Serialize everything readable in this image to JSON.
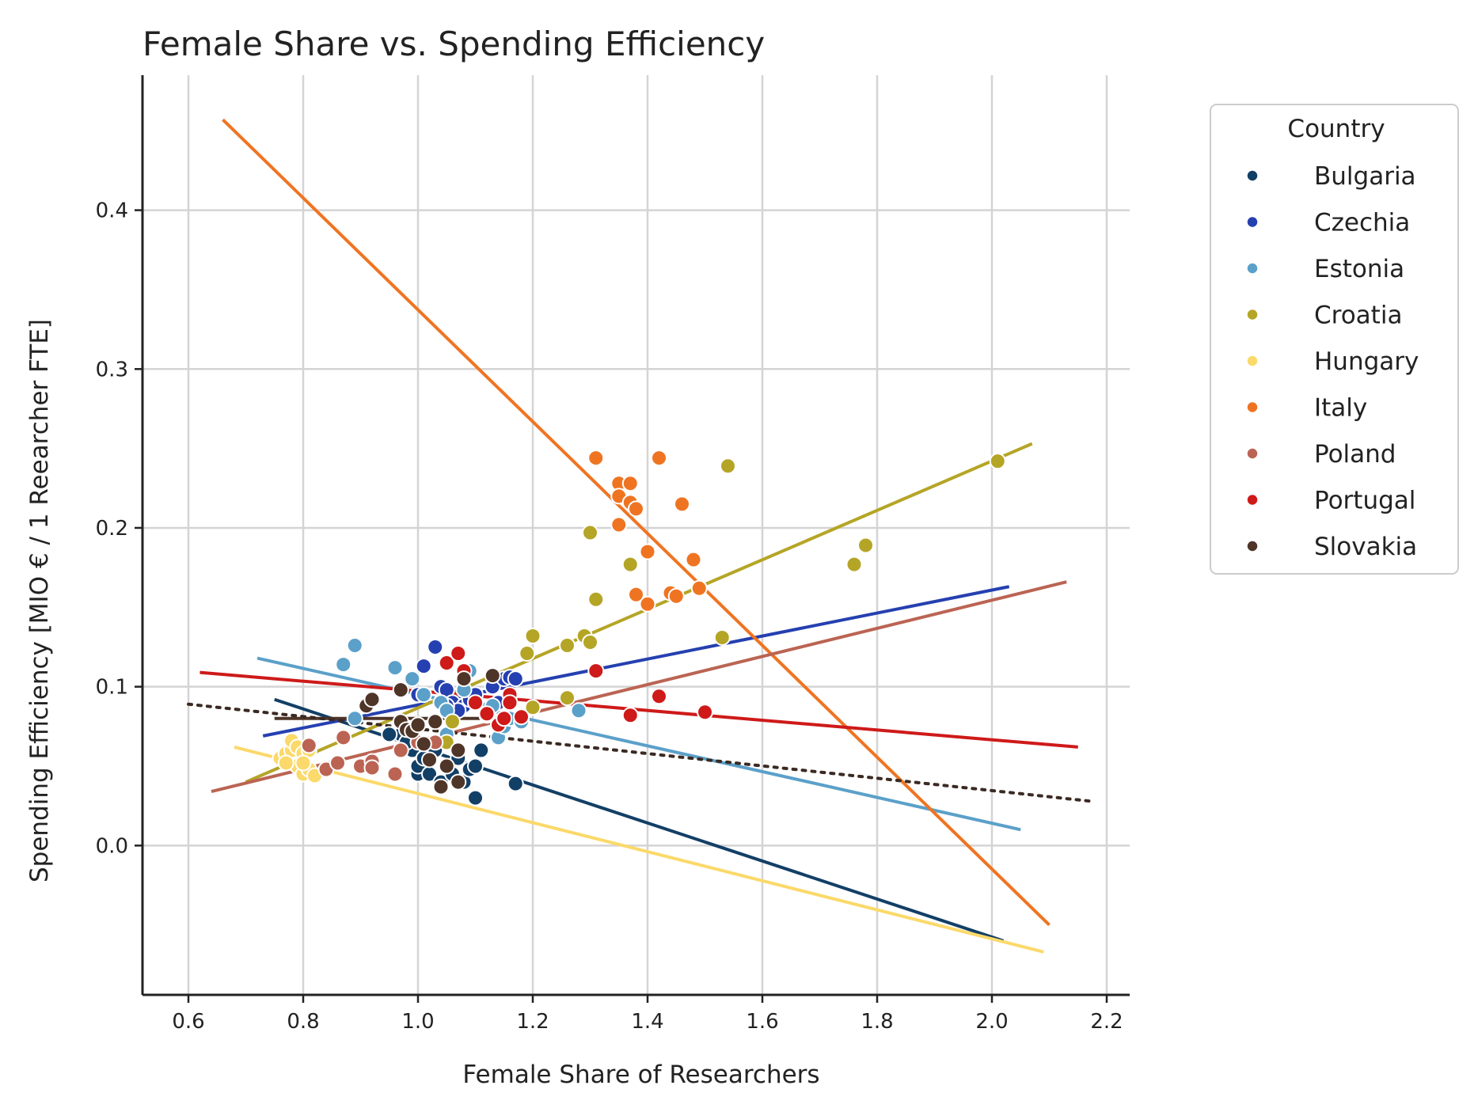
{
  "chart_data": {
    "type": "scatter",
    "title": "Female Share vs. Spending Efficiency",
    "xlabel": "Female Share of Researchers",
    "ylabel": "Spending Efficiency [MIO € / 1 Reearcher FTE]",
    "xlim": [
      0.52,
      2.24
    ],
    "ylim": [
      -0.094,
      0.485
    ],
    "x_ticks": [
      "0.6",
      "0.8",
      "1.0",
      "1.2",
      "1.4",
      "1.6",
      "1.8",
      "2.0",
      "2.2"
    ],
    "x_tick_values": [
      0.6,
      0.8,
      1.0,
      1.2,
      1.4,
      1.6,
      1.8,
      2.0,
      2.2
    ],
    "y_ticks": [
      "0.0",
      "0.1",
      "0.2",
      "0.3",
      "0.4"
    ],
    "y_tick_values": [
      0.0,
      0.1,
      0.2,
      0.3,
      0.4
    ],
    "grid": true,
    "legend": {
      "title": "Country",
      "placement": "outside-right"
    },
    "series": [
      {
        "name": "Bulgaria",
        "color": "#123f66",
        "points": [
          [
            0.97,
            0.07
          ],
          [
            0.99,
            0.06
          ],
          [
            1.0,
            0.045
          ],
          [
            1.0,
            0.05
          ],
          [
            1.01,
            0.055
          ],
          [
            1.02,
            0.045
          ],
          [
            1.03,
            0.06
          ],
          [
            1.04,
            0.04
          ],
          [
            1.05,
            0.05
          ],
          [
            1.06,
            0.045
          ],
          [
            1.07,
            0.055
          ],
          [
            1.08,
            0.04
          ],
          [
            1.09,
            0.048
          ],
          [
            1.1,
            0.05
          ],
          [
            1.1,
            0.03
          ],
          [
            1.11,
            0.06
          ],
          [
            1.17,
            0.039
          ],
          [
            0.95,
            0.07
          ],
          [
            0.98,
            0.065
          ]
        ],
        "trend": [
          [
            0.75,
            0.092
          ],
          [
            2.02,
            -0.06
          ]
        ]
      },
      {
        "name": "Czechia",
        "color": "#2540b0",
        "points": [
          [
            1.01,
            0.113
          ],
          [
            1.03,
            0.125
          ],
          [
            1.04,
            0.1
          ],
          [
            1.05,
            0.098
          ],
          [
            1.06,
            0.09
          ],
          [
            1.08,
            0.088
          ],
          [
            1.09,
            0.092
          ],
          [
            1.1,
            0.095
          ],
          [
            1.13,
            0.1
          ],
          [
            1.15,
            0.105
          ],
          [
            1.16,
            0.106
          ],
          [
            1.17,
            0.105
          ],
          [
            1.18,
            0.08
          ],
          [
            1.07,
            0.085
          ],
          [
            1.12,
            0.085
          ],
          [
            1.14,
            0.09
          ],
          [
            1.0,
            0.095
          ],
          [
            1.05,
            0.088
          ]
        ],
        "trend": [
          [
            0.73,
            0.069
          ],
          [
            2.03,
            0.163
          ]
        ]
      },
      {
        "name": "Estonia",
        "color": "#5ba0c9",
        "points": [
          [
            0.87,
            0.114
          ],
          [
            0.89,
            0.126
          ],
          [
            0.89,
            0.08
          ],
          [
            0.96,
            0.112
          ],
          [
            0.99,
            0.105
          ],
          [
            1.01,
            0.095
          ],
          [
            1.04,
            0.09
          ],
          [
            1.05,
            0.085
          ],
          [
            1.08,
            0.098
          ],
          [
            1.09,
            0.11
          ],
          [
            1.1,
            0.09
          ],
          [
            1.12,
            0.086
          ],
          [
            1.13,
            0.088
          ],
          [
            1.14,
            0.068
          ],
          [
            1.15,
            0.075
          ],
          [
            1.16,
            0.08
          ],
          [
            1.18,
            0.078
          ],
          [
            1.28,
            0.085
          ],
          [
            1.05,
            0.07
          ]
        ],
        "trend": [
          [
            0.72,
            0.118
          ],
          [
            2.05,
            0.01
          ]
        ]
      },
      {
        "name": "Croatia",
        "color": "#b5a526",
        "points": [
          [
            1.19,
            0.121
          ],
          [
            1.2,
            0.132
          ],
          [
            1.26,
            0.126
          ],
          [
            1.29,
            0.132
          ],
          [
            1.3,
            0.128
          ],
          [
            1.31,
            0.155
          ],
          [
            1.3,
            0.197
          ],
          [
            1.37,
            0.177
          ],
          [
            1.54,
            0.239
          ],
          [
            1.53,
            0.131
          ],
          [
            1.76,
            0.177
          ],
          [
            1.78,
            0.189
          ],
          [
            2.01,
            0.242
          ],
          [
            1.2,
            0.087
          ],
          [
            1.26,
            0.093
          ],
          [
            1.06,
            0.078
          ],
          [
            1.12,
            0.082
          ],
          [
            1.05,
            0.065
          ]
        ],
        "trend": [
          [
            0.7,
            0.04
          ],
          [
            2.07,
            0.253
          ]
        ]
      },
      {
        "name": "Hungary",
        "color": "#fbd96a",
        "points": [
          [
            0.76,
            0.055
          ],
          [
            0.77,
            0.058
          ],
          [
            0.78,
            0.06
          ],
          [
            0.78,
            0.066
          ],
          [
            0.79,
            0.062
          ],
          [
            0.79,
            0.05
          ],
          [
            0.8,
            0.045
          ],
          [
            0.8,
            0.058
          ],
          [
            0.81,
            0.06
          ],
          [
            0.81,
            0.048
          ],
          [
            0.82,
            0.044
          ],
          [
            0.77,
            0.052
          ],
          [
            0.8,
            0.052
          ]
        ],
        "trend": [
          [
            0.68,
            0.062
          ],
          [
            2.09,
            -0.067
          ]
        ]
      },
      {
        "name": "Italy",
        "color": "#ef7422",
        "points": [
          [
            1.31,
            0.244
          ],
          [
            1.35,
            0.228
          ],
          [
            1.35,
            0.22
          ],
          [
            1.37,
            0.228
          ],
          [
            1.37,
            0.216
          ],
          [
            1.38,
            0.212
          ],
          [
            1.35,
            0.202
          ],
          [
            1.4,
            0.185
          ],
          [
            1.38,
            0.158
          ],
          [
            1.4,
            0.152
          ],
          [
            1.42,
            0.244
          ],
          [
            1.44,
            0.159
          ],
          [
            1.45,
            0.157
          ],
          [
            1.46,
            0.215
          ],
          [
            1.48,
            0.18
          ],
          [
            1.49,
            0.162
          ]
        ],
        "trend": [
          [
            0.66,
            0.457
          ],
          [
            2.1,
            -0.05
          ]
        ]
      },
      {
        "name": "Poland",
        "color": "#bb6453",
        "points": [
          [
            0.81,
            0.063
          ],
          [
            0.84,
            0.048
          ],
          [
            0.86,
            0.052
          ],
          [
            0.87,
            0.068
          ],
          [
            0.9,
            0.05
          ],
          [
            0.92,
            0.053
          ],
          [
            0.92,
            0.049
          ],
          [
            0.96,
            0.045
          ],
          [
            0.97,
            0.06
          ],
          [
            1.0,
            0.065
          ],
          [
            1.03,
            0.065
          ]
        ],
        "trend": [
          [
            0.64,
            0.034
          ],
          [
            2.13,
            0.166
          ]
        ]
      },
      {
        "name": "Portugal",
        "color": "#ce1a19",
        "points": [
          [
            1.05,
            0.115
          ],
          [
            1.07,
            0.121
          ],
          [
            1.08,
            0.11
          ],
          [
            1.1,
            0.09
          ],
          [
            1.12,
            0.083
          ],
          [
            1.14,
            0.076
          ],
          [
            1.15,
            0.08
          ],
          [
            1.16,
            0.095
          ],
          [
            1.16,
            0.09
          ],
          [
            1.18,
            0.081
          ],
          [
            1.31,
            0.11
          ],
          [
            1.37,
            0.082
          ],
          [
            1.42,
            0.094
          ],
          [
            1.5,
            0.084
          ]
        ],
        "trend": [
          [
            0.62,
            0.109
          ],
          [
            2.15,
            0.062
          ]
        ]
      },
      {
        "name": "Slovakia",
        "color": "#4e3528",
        "points": [
          [
            0.91,
            0.088
          ],
          [
            0.92,
            0.092
          ],
          [
            0.97,
            0.098
          ],
          [
            0.97,
            0.078
          ],
          [
            0.98,
            0.073
          ],
          [
            0.99,
            0.072
          ],
          [
            1.0,
            0.076
          ],
          [
            1.01,
            0.064
          ],
          [
            1.02,
            0.054
          ],
          [
            1.03,
            0.078
          ],
          [
            1.04,
            0.037
          ],
          [
            1.05,
            0.05
          ],
          [
            1.07,
            0.04
          ],
          [
            1.07,
            0.06
          ],
          [
            1.08,
            0.105
          ],
          [
            1.13,
            0.107
          ]
        ],
        "trend": [
          [
            0.75,
            0.08
          ],
          [
            1.15,
            0.08
          ]
        ]
      }
    ],
    "overall_trend": {
      "style": "dotted",
      "color": "#3b2a22",
      "line": [
        [
          0.6,
          0.089
        ],
        [
          2.17,
          0.028
        ]
      ]
    }
  }
}
